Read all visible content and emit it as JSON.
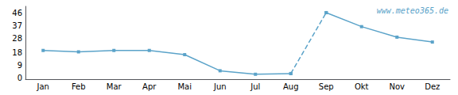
{
  "chart_data": {
    "type": "line",
    "categories": [
      "Jan",
      "Feb",
      "Mar",
      "Apr",
      "Mai",
      "Jun",
      "Jul",
      "Aug",
      "Sep",
      "Okt",
      "Nov",
      "Dez"
    ],
    "series": [
      {
        "color": "#5ba3c9",
        "marker": "square",
        "line_style": "solid",
        "values": [
          19.5,
          18.5,
          19.5,
          19.5,
          16.5,
          5.0,
          2.5,
          3.0,
          null,
          null,
          null,
          null
        ]
      },
      {
        "color": "#5ba3c9",
        "marker": "square",
        "line_style": "dashed",
        "values": [
          null,
          null,
          null,
          null,
          null,
          null,
          null,
          3.0,
          46.5,
          null,
          null,
          null
        ]
      },
      {
        "color": "#5ba3c9",
        "marker": "square",
        "line_style": "solid",
        "values": [
          null,
          null,
          null,
          null,
          null,
          null,
          null,
          null,
          46.5,
          36.5,
          29.0,
          25.5
        ]
      }
    ],
    "ylim": [
      -1,
      51
    ],
    "yticks": [
      0,
      9,
      18,
      28,
      37,
      46
    ],
    "grid": false,
    "annotations": [
      {
        "text": "www.meteo365.de",
        "color": "#5ba3c9"
      }
    ]
  }
}
